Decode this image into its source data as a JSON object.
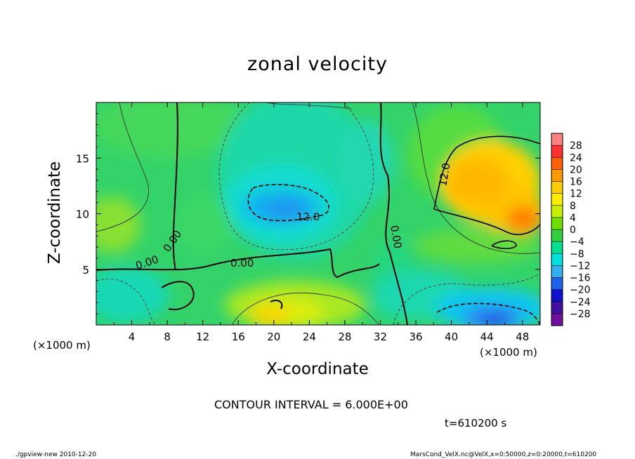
{
  "chart_data": {
    "type": "heatmap",
    "title": "zonal velocity",
    "xlabel": "X-coordinate",
    "ylabel": "Z-coordinate",
    "x_unit": "(×1000 m)",
    "y_unit": "(×1000 m)",
    "xlim": [
      0,
      50
    ],
    "ylim": [
      0,
      20
    ],
    "x_ticks": [
      "4",
      "8",
      "12",
      "16",
      "20",
      "24",
      "28",
      "32",
      "36",
      "40",
      "44",
      "48"
    ],
    "y_ticks": [
      "5",
      "10",
      "15"
    ],
    "colorbar_labels": [
      "28",
      "24",
      "20",
      "16",
      "12",
      "8",
      "4",
      "0",
      "−4",
      "−8",
      "−12",
      "−16",
      "−20",
      "−24",
      "−28"
    ],
    "colorbar_colors": [
      "#ff8080",
      "#ff3030",
      "#ff6000",
      "#ff9900",
      "#ffcc00",
      "#ffee00",
      "#c8f000",
      "#70e000",
      "#30d040",
      "#00e090",
      "#00e0e0",
      "#30b0f0",
      "#2060f0",
      "#1010d0",
      "#4010a0",
      "#7010a0"
    ],
    "contour_labels": [
      "12.0",
      "0.00",
      "0.00",
      "0.00",
      "0.00",
      "12.0"
    ],
    "contour_interval_text": "CONTOUR INTERVAL = 6.000E+00",
    "time_text": "t=610200 s",
    "footer_left": "./gpview-new  2010-12-20",
    "footer_right": "MarsCond_VelX.nc@VelX,x=0:50000,z=0:20000,t=610200"
  }
}
